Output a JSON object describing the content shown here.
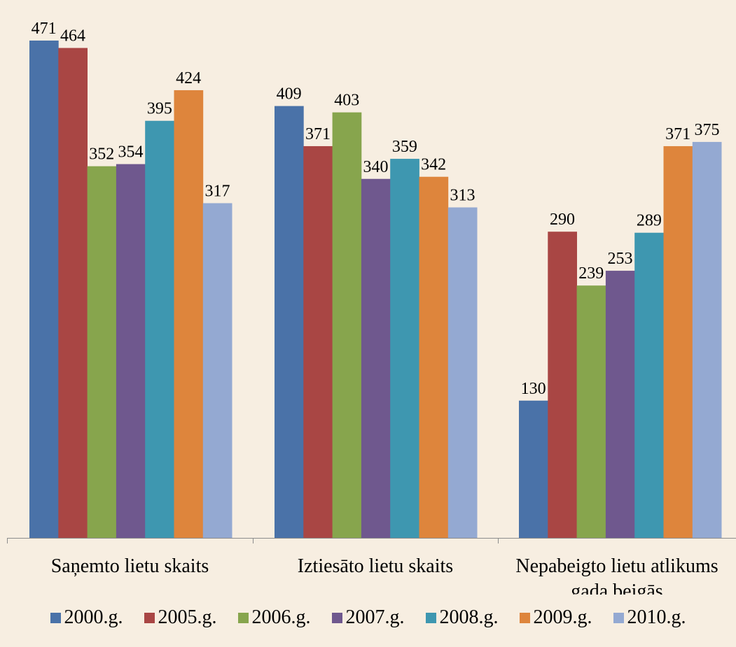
{
  "chart_data": {
    "type": "bar",
    "title": "",
    "xlabel": "",
    "ylabel": "",
    "ylim": [
      0,
      471
    ],
    "grid": false,
    "legend_position": "bottom",
    "categories": [
      [
        "Saņemto lietu skaits"
      ],
      [
        "Iztiesāto lietu skaits"
      ],
      [
        "Nepabeigto lietu atlikums",
        "gada beigās"
      ]
    ],
    "series": [
      {
        "name": "2000.g.",
        "color": "#4a72a8",
        "values": [
          471,
          409,
          130
        ]
      },
      {
        "name": "2005.g.",
        "color": "#a94644",
        "values": [
          464,
          371,
          290
        ]
      },
      {
        "name": "2006.g.",
        "color": "#87a54d",
        "values": [
          352,
          403,
          239
        ]
      },
      {
        "name": "2007.g.",
        "color": "#6f588e",
        "values": [
          354,
          340,
          253
        ]
      },
      {
        "name": "2008.g.",
        "color": "#3e97b0",
        "values": [
          395,
          359,
          289
        ]
      },
      {
        "name": "2009.g.",
        "color": "#de853c",
        "values": [
          424,
          342,
          371
        ]
      },
      {
        "name": "2010.g.",
        "color": "#94a9d2",
        "values": [
          317,
          313,
          375
        ]
      }
    ]
  }
}
